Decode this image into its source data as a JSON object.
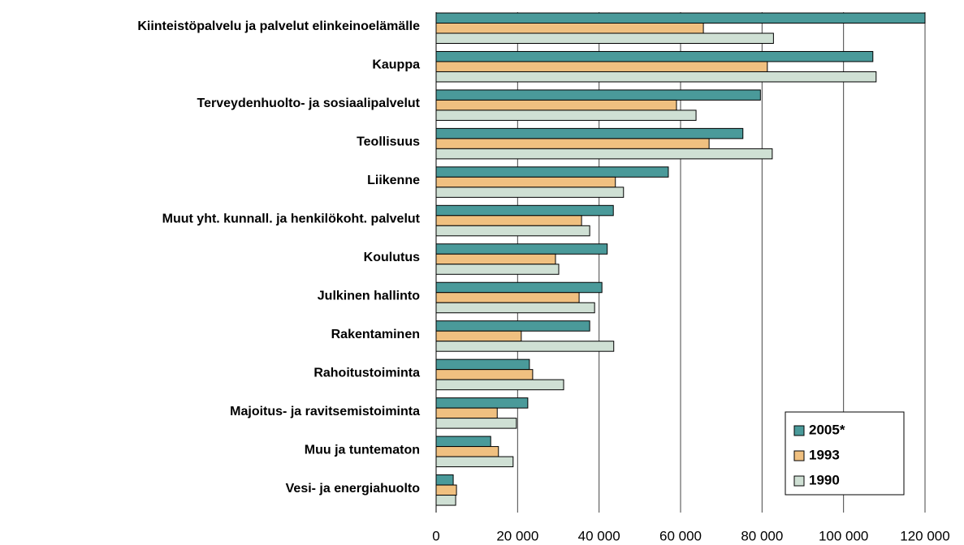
{
  "chart_data": {
    "type": "bar",
    "orientation": "horizontal",
    "categories": [
      "Kiinteistöpalvelu ja palvelut elinkeinoelämälle",
      "Kauppa",
      "Terveydenhuolto- ja sosiaalipalvelut",
      "Teollisuus",
      "Liikenne",
      "Muut yht. kunnall. ja henkilökoht. palvelut",
      "Koulutus",
      "Julkinen hallinto",
      "Rakentaminen",
      "Rahoitustoiminta",
      "Majoitus- ja ravitsemistoiminta",
      "Muu ja tuntematon",
      "Vesi- ja energiahuolto"
    ],
    "series": [
      {
        "name": "2005*",
        "color": "#4a9a9a",
        "values": [
          120000,
          107200,
          79600,
          75300,
          57000,
          43500,
          42000,
          40700,
          37700,
          22900,
          22500,
          13400,
          4200
        ]
      },
      {
        "name": "1993",
        "color": "#f0c080",
        "values": [
          65600,
          81300,
          59000,
          67000,
          44000,
          35700,
          29300,
          35100,
          20900,
          23700,
          15000,
          15300,
          5000
        ]
      },
      {
        "name": "1990",
        "color": "#cfe0d4",
        "values": [
          82800,
          108000,
          63800,
          82500,
          46000,
          37700,
          30100,
          38900,
          43600,
          31300,
          19700,
          18900,
          4800
        ]
      }
    ],
    "xlim": [
      0,
      120000
    ],
    "xticks": [
      0,
      {
        "value": 20000,
        "label": "20 000"
      },
      {
        "value": 40000,
        "label": "40 000"
      },
      {
        "value": 60000,
        "label": "60 000"
      },
      {
        "value": 80000,
        "label": "80 000"
      },
      {
        "value": 100000,
        "label": "100 000"
      },
      {
        "value": 120000,
        "label": "120 000"
      }
    ],
    "grid": true,
    "legend": "lower right"
  }
}
